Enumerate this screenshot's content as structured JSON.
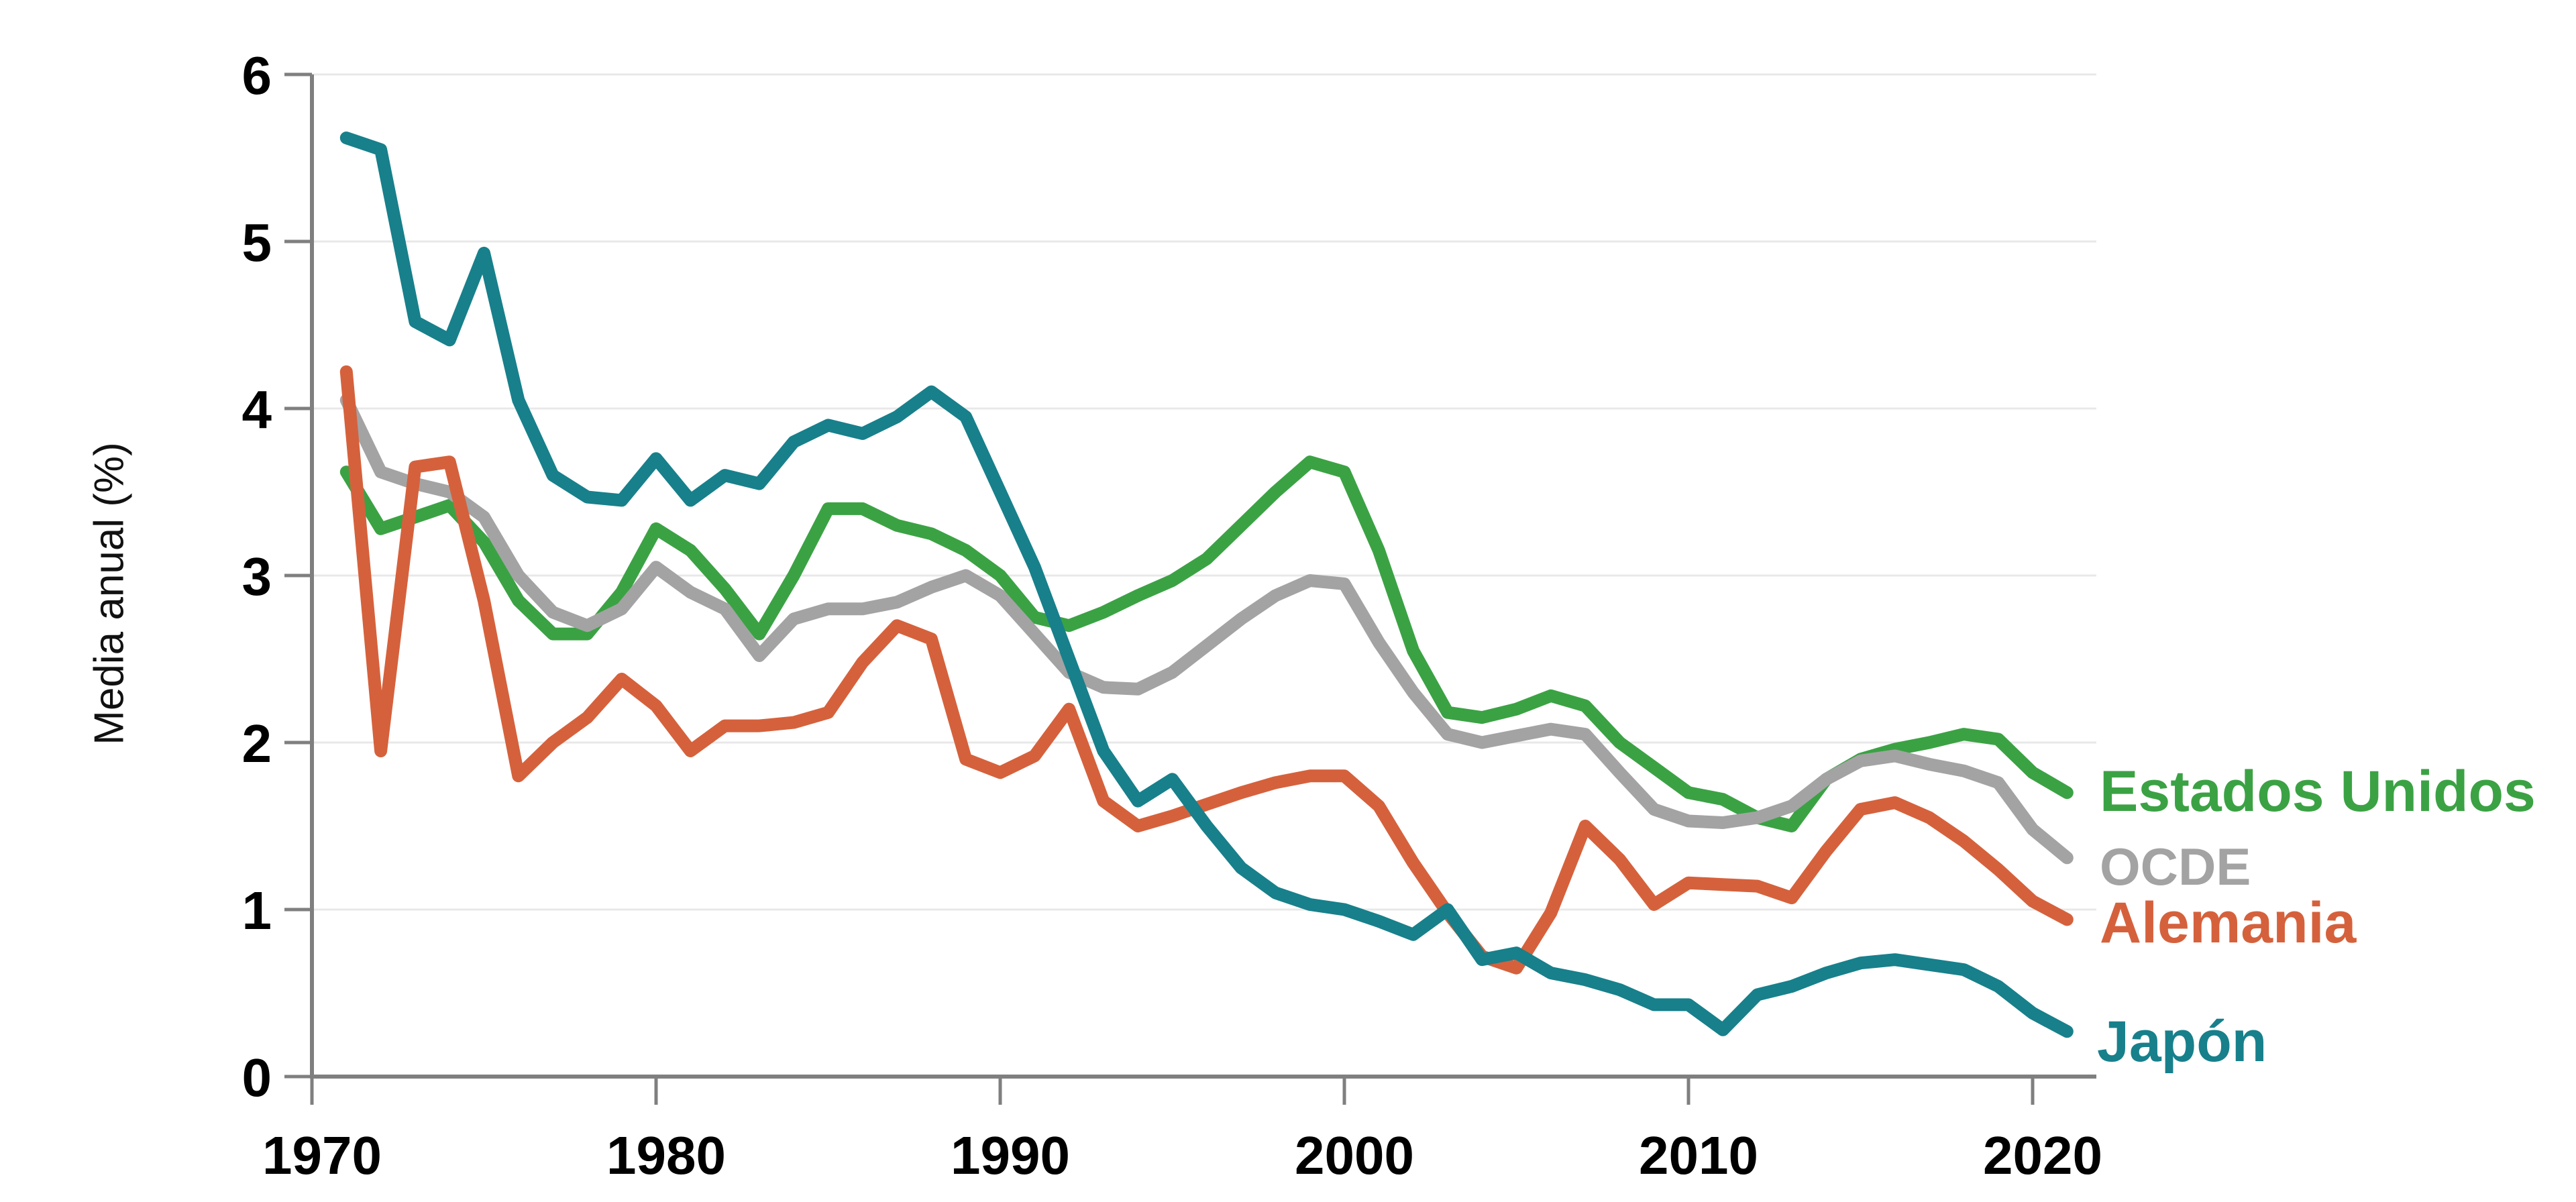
{
  "chart_data": {
    "type": "line",
    "title": "",
    "ylabel": "Media anual (%)",
    "xlabel": "",
    "ylim": [
      0,
      6
    ],
    "xlim": [
      1970,
      2021
    ],
    "grid": "horizontal",
    "legend_position": "right-end-of-lines",
    "background": "#ffffff",
    "axis_color": "#7f7f7f",
    "gridline_color": "#e8e8e8",
    "x_tick_labels": [
      "1970",
      "1980",
      "1990",
      "2000",
      "2010",
      "2020"
    ],
    "y_tick_labels": [
      "0",
      "1",
      "2",
      "3",
      "4",
      "5",
      "6"
    ],
    "x": [
      1971,
      1972,
      1973,
      1974,
      1975,
      1976,
      1977,
      1978,
      1979,
      1980,
      1981,
      1982,
      1983,
      1984,
      1985,
      1986,
      1987,
      1988,
      1989,
      1990,
      1991,
      1992,
      1993,
      1994,
      1995,
      1996,
      1997,
      1998,
      1999,
      2000,
      2001,
      2002,
      2003,
      2004,
      2005,
      2006,
      2007,
      2008,
      2009,
      2010,
      2011,
      2012,
      2013,
      2014,
      2015,
      2016,
      2017,
      2018,
      2019,
      2020,
      2021
    ],
    "series": [
      {
        "name": "Estados Unidos",
        "color": "#3BA244",
        "values": [
          3.62,
          3.28,
          3.35,
          3.42,
          3.2,
          2.85,
          2.65,
          2.65,
          2.9,
          3.28,
          3.15,
          2.92,
          2.65,
          3.0,
          3.4,
          3.4,
          3.3,
          3.25,
          3.15,
          3.0,
          2.75,
          2.7,
          2.78,
          2.88,
          2.97,
          3.1,
          3.3,
          3.5,
          3.68,
          3.62,
          3.15,
          2.55,
          2.18,
          2.15,
          2.2,
          2.28,
          2.22,
          2.0,
          1.85,
          1.7,
          1.66,
          1.55,
          1.5,
          1.78,
          1.9,
          1.96,
          2.0,
          2.05,
          2.02,
          1.82,
          1.7
        ]
      },
      {
        "name": "OCDE",
        "color": "#A3A3A3",
        "values": [
          4.05,
          3.62,
          3.55,
          3.5,
          3.35,
          3.0,
          2.78,
          2.7,
          2.8,
          3.05,
          2.9,
          2.8,
          2.52,
          2.74,
          2.8,
          2.8,
          2.84,
          2.93,
          3.0,
          2.88,
          2.65,
          2.42,
          2.33,
          2.32,
          2.42,
          2.58,
          2.74,
          2.88,
          2.97,
          2.95,
          2.6,
          2.3,
          2.05,
          2.0,
          2.04,
          2.08,
          2.05,
          1.82,
          1.6,
          1.53,
          1.52,
          1.55,
          1.62,
          1.78,
          1.89,
          1.92,
          1.87,
          1.83,
          1.76,
          1.48,
          1.31
        ]
      },
      {
        "name": "Alemania",
        "color": "#D5613C",
        "values": [
          4.22,
          1.95,
          3.65,
          3.68,
          2.85,
          1.8,
          2.0,
          2.15,
          2.38,
          2.22,
          1.95,
          2.1,
          2.1,
          2.12,
          2.18,
          2.48,
          2.7,
          2.62,
          1.9,
          1.82,
          1.92,
          2.2,
          1.65,
          1.5,
          1.56,
          1.63,
          1.7,
          1.76,
          1.8,
          1.8,
          1.62,
          1.28,
          0.98,
          0.72,
          0.65,
          0.98,
          1.5,
          1.3,
          1.03,
          1.16,
          1.15,
          1.14,
          1.07,
          1.35,
          1.6,
          1.64,
          1.55,
          1.41,
          1.24,
          1.05,
          0.94
        ]
      },
      {
        "name": "Japón",
        "color": "#17808B",
        "values": [
          5.62,
          5.55,
          4.52,
          4.41,
          4.93,
          4.05,
          3.6,
          3.47,
          3.45,
          3.7,
          3.45,
          3.6,
          3.55,
          3.8,
          3.9,
          3.85,
          3.95,
          4.1,
          3.95,
          3.5,
          3.05,
          2.5,
          1.95,
          1.65,
          1.78,
          1.5,
          1.25,
          1.1,
          1.03,
          1.0,
          0.93,
          0.85,
          1.0,
          0.7,
          0.74,
          0.62,
          0.58,
          0.52,
          0.43,
          0.43,
          0.28,
          0.49,
          0.54,
          0.62,
          0.68,
          0.7,
          0.67,
          0.64,
          0.54,
          0.38,
          0.27
        ]
      }
    ]
  }
}
